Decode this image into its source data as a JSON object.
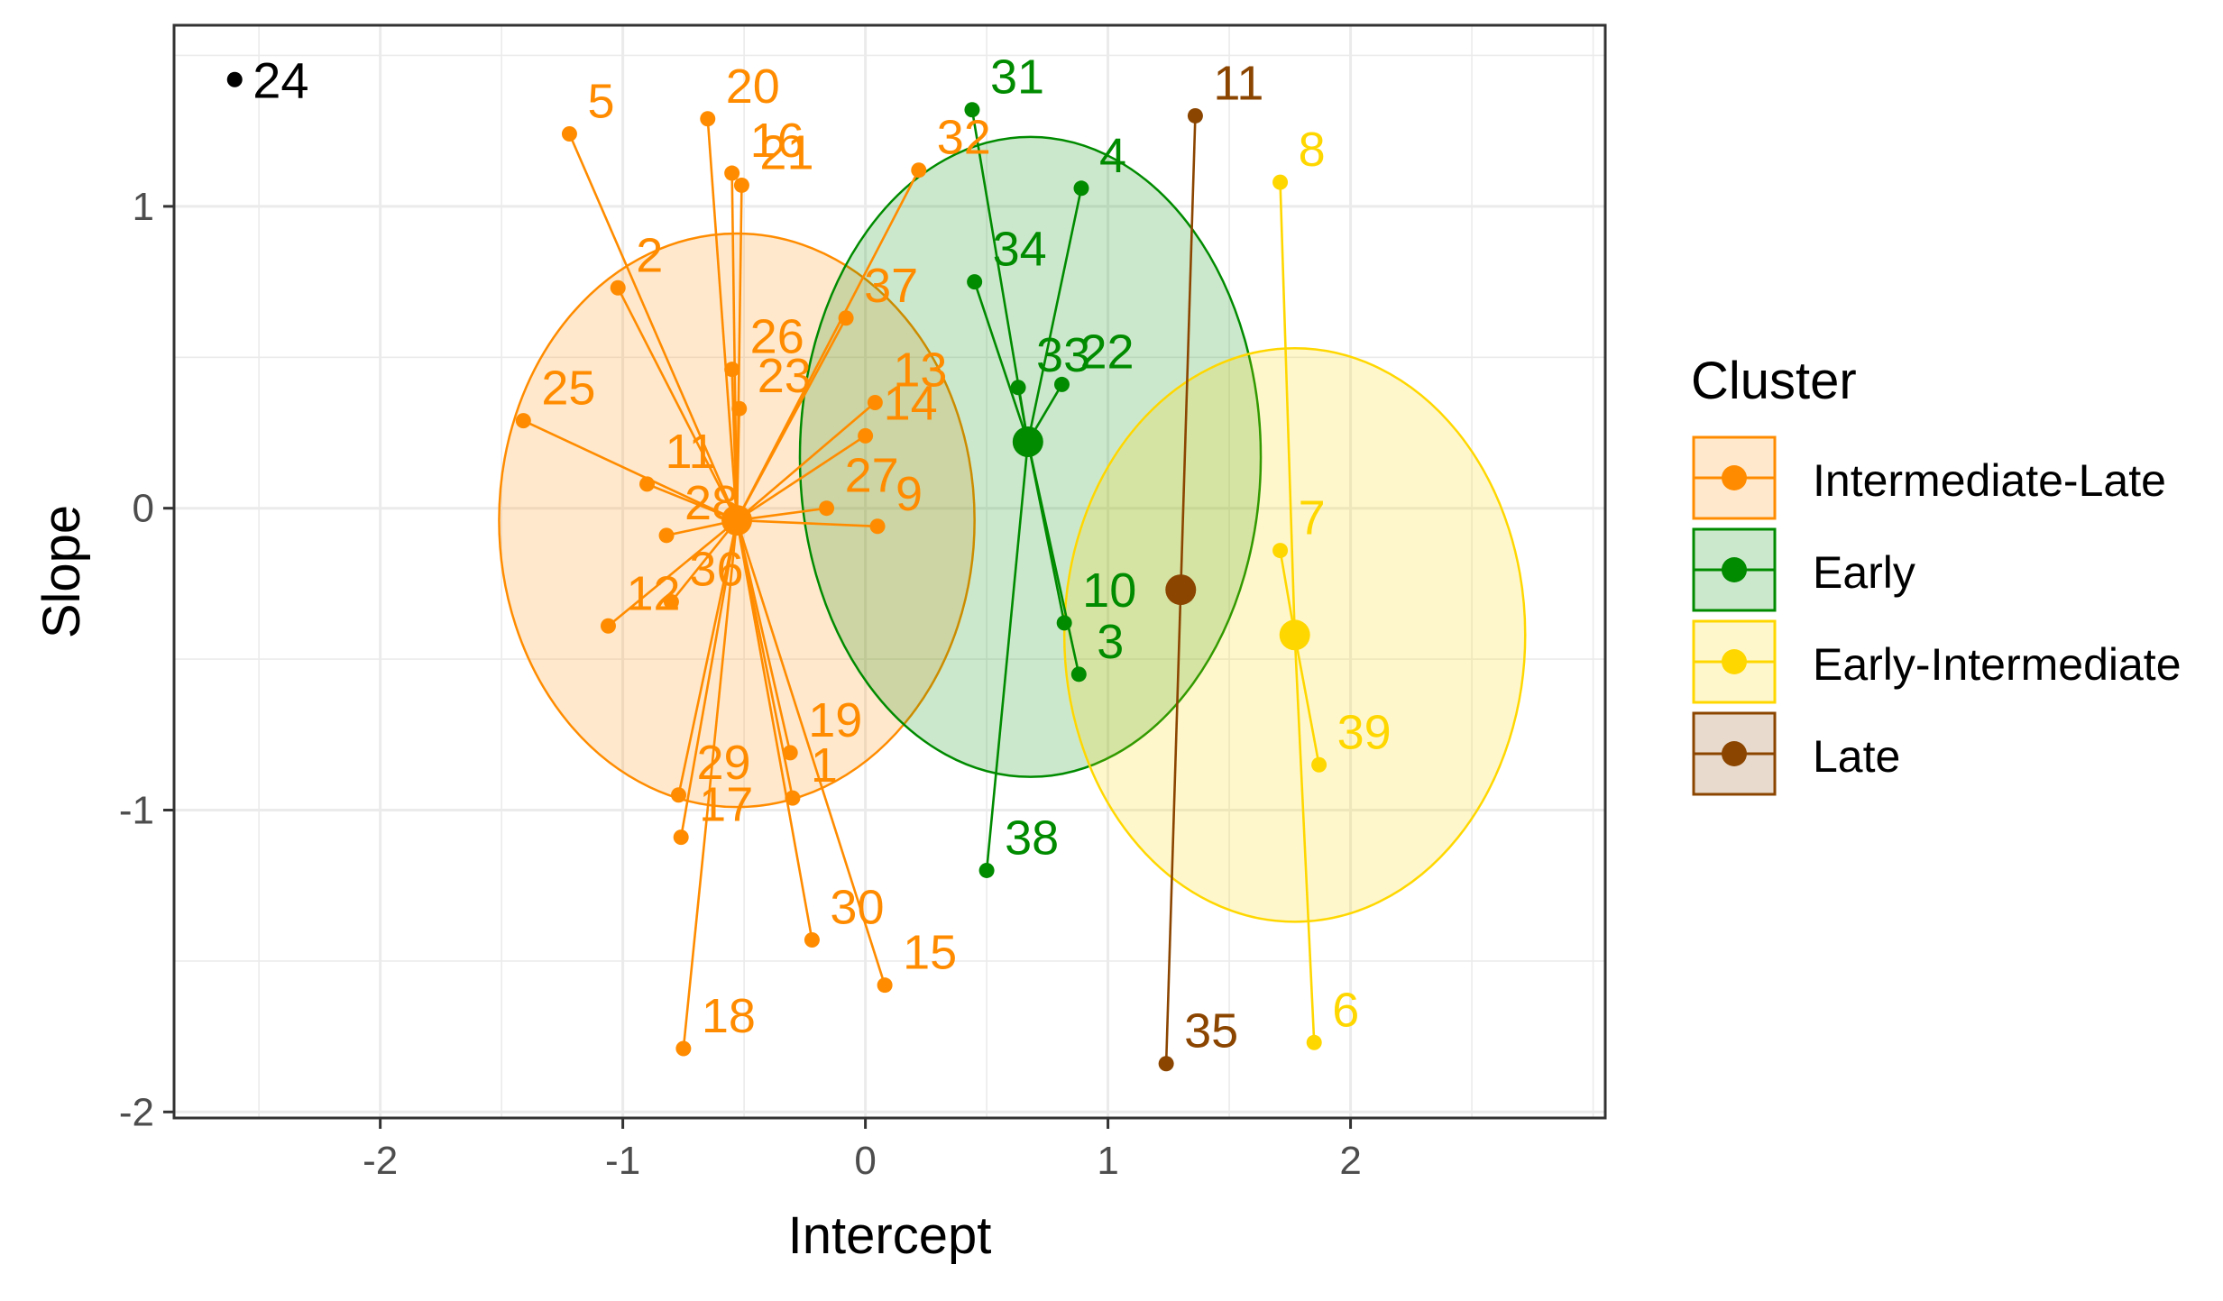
{
  "chart_data": {
    "type": "scatter",
    "title": "",
    "xlabel": "Intercept",
    "ylabel": "Slope",
    "xlim": [
      -2.85,
      3.05
    ],
    "ylim": [
      -2.02,
      1.6
    ],
    "x_ticks": [
      -2,
      -1,
      0,
      1,
      2
    ],
    "y_ticks": [
      1,
      0,
      -1,
      -2
    ],
    "grid": true,
    "legend": {
      "title": "Cluster",
      "position": "right",
      "entries": [
        "Intermediate-Late",
        "Early",
        "Early-Intermediate",
        "Late"
      ]
    },
    "series": [
      {
        "name": "Intermediate-Late",
        "color": "#FF8C00",
        "centroid": [
          -0.53,
          -0.04
        ],
        "ellipse": {
          "center": [
            -0.53,
            -0.04
          ],
          "radii": [
            0.98,
            0.95
          ]
        },
        "points": [
          {
            "label": "5",
            "x": -1.22,
            "y": 1.24
          },
          {
            "label": "20",
            "x": -0.65,
            "y": 1.29
          },
          {
            "label": "16",
            "x": -0.55,
            "y": 1.11
          },
          {
            "label": "21",
            "x": -0.51,
            "y": 1.07
          },
          {
            "label": "32",
            "x": 0.22,
            "y": 1.12
          },
          {
            "label": "2",
            "x": -1.02,
            "y": 0.73
          },
          {
            "label": "37",
            "x": -0.08,
            "y": 0.63
          },
          {
            "label": "25",
            "x": -1.41,
            "y": 0.29
          },
          {
            "label": "26",
            "x": -0.55,
            "y": 0.46
          },
          {
            "label": "23",
            "x": -0.52,
            "y": 0.33
          },
          {
            "label": "13",
            "x": 0.04,
            "y": 0.35
          },
          {
            "label": "14",
            "x": 0.0,
            "y": 0.24
          },
          {
            "label": "11",
            "x": -0.9,
            "y": 0.08
          },
          {
            "label": "28",
            "x": -0.82,
            "y": -0.09
          },
          {
            "label": "27",
            "x": -0.16,
            "y": 0.0
          },
          {
            "label": "9",
            "x": 0.05,
            "y": -0.06
          },
          {
            "label": "12",
            "x": -1.06,
            "y": -0.39
          },
          {
            "label": "36",
            "x": -0.8,
            "y": -0.31
          },
          {
            "label": "19",
            "x": -0.31,
            "y": -0.81
          },
          {
            "label": "29",
            "x": -0.77,
            "y": -0.95
          },
          {
            "label": "1",
            "x": -0.3,
            "y": -0.96
          },
          {
            "label": "17",
            "x": -0.76,
            "y": -1.09
          },
          {
            "label": "30",
            "x": -0.22,
            "y": -1.43
          },
          {
            "label": "15",
            "x": 0.08,
            "y": -1.58
          },
          {
            "label": "18",
            "x": -0.75,
            "y": -1.79
          }
        ]
      },
      {
        "name": "Early",
        "color": "#008B00",
        "centroid": [
          0.67,
          0.22
        ],
        "ellipse": {
          "center": [
            0.68,
            0.17
          ],
          "radii": [
            0.95,
            1.06
          ]
        },
        "points": [
          {
            "label": "31",
            "x": 0.44,
            "y": 1.32
          },
          {
            "label": "4",
            "x": 0.89,
            "y": 1.06
          },
          {
            "label": "34",
            "x": 0.45,
            "y": 0.75
          },
          {
            "label": "22",
            "x": 0.81,
            "y": 0.41
          },
          {
            "label": "33",
            "x": 0.63,
            "y": 0.4
          },
          {
            "label": "10",
            "x": 0.82,
            "y": -0.38
          },
          {
            "label": "3",
            "x": 0.88,
            "y": -0.55
          },
          {
            "label": "38",
            "x": 0.5,
            "y": -1.2
          }
        ]
      },
      {
        "name": "Early-Intermediate",
        "color": "#FFD700",
        "centroid": [
          1.77,
          -0.42
        ],
        "ellipse": {
          "center": [
            1.77,
            -0.42
          ],
          "radii": [
            0.95,
            0.95
          ]
        },
        "points": [
          {
            "label": "8",
            "x": 1.71,
            "y": 1.08
          },
          {
            "label": "7",
            "x": 1.71,
            "y": -0.14
          },
          {
            "label": "39",
            "x": 1.87,
            "y": -0.85
          },
          {
            "label": "6",
            "x": 1.85,
            "y": -1.77
          }
        ]
      },
      {
        "name": "Late",
        "color": "#8B4500",
        "centroid": [
          1.3,
          -0.27
        ],
        "points": [
          {
            "label": "11",
            "x": 1.36,
            "y": 1.3
          },
          {
            "label": "35",
            "x": 1.24,
            "y": -1.84
          }
        ]
      },
      {
        "name": "",
        "color": "#000000",
        "points": [
          {
            "label": "24",
            "x": -2.6,
            "y": 1.42
          }
        ]
      }
    ]
  }
}
